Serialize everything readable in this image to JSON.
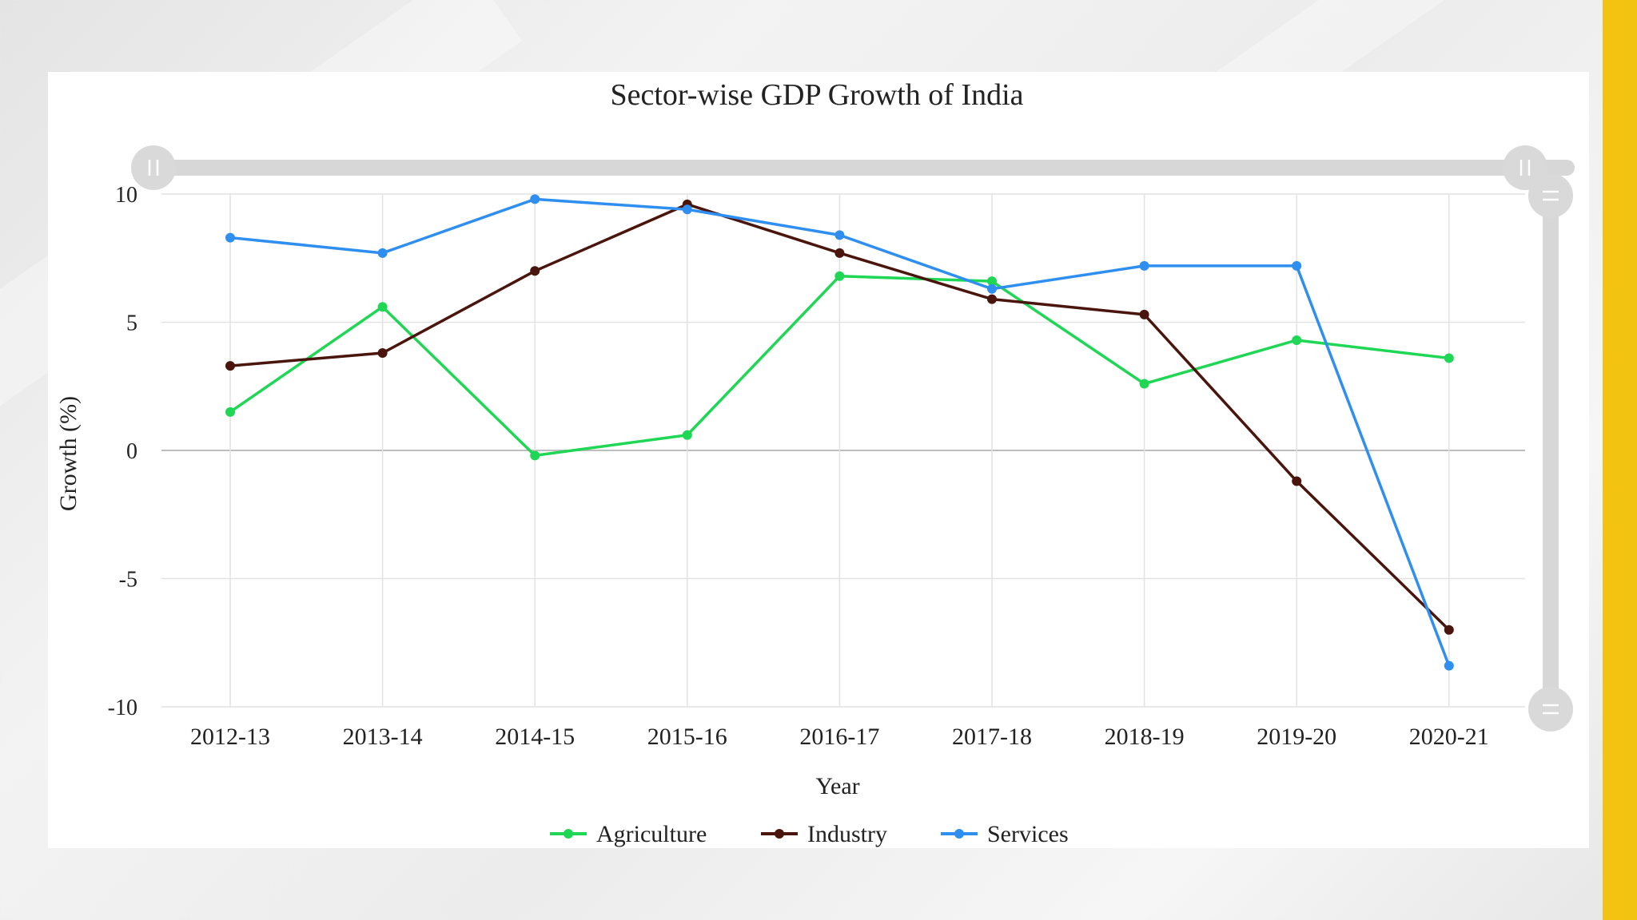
{
  "colors": {
    "agriculture": "#1fd655",
    "industry": "#4a150c",
    "services": "#2f8ff0",
    "accent": "#f2c311"
  },
  "chart_data": {
    "type": "line",
    "title": "Sector-wise GDP Growth of India",
    "xlabel": "Year",
    "ylabel": "Growth (%)",
    "categories": [
      "2012-13",
      "2013-14",
      "2014-15",
      "2015-16",
      "2016-17",
      "2017-18",
      "2018-19",
      "2019-20",
      "2020-21"
    ],
    "ylim": [
      -10,
      10
    ],
    "yticks": [
      10,
      5,
      0,
      -5,
      -10
    ],
    "grid": true,
    "legend_position": "bottom",
    "series": [
      {
        "name": "Agriculture",
        "color": "#1fd655",
        "values": [
          1.5,
          5.6,
          -0.2,
          0.6,
          6.8,
          6.6,
          2.6,
          4.3,
          3.6
        ]
      },
      {
        "name": "Industry",
        "color": "#4a150c",
        "values": [
          3.3,
          3.8,
          7.0,
          9.6,
          7.7,
          5.9,
          5.3,
          -1.2,
          -7.0
        ]
      },
      {
        "name": "Services",
        "color": "#2f8ff0",
        "values": [
          8.3,
          7.7,
          9.8,
          9.4,
          8.4,
          6.3,
          7.2,
          7.2,
          -8.4
        ]
      }
    ]
  }
}
